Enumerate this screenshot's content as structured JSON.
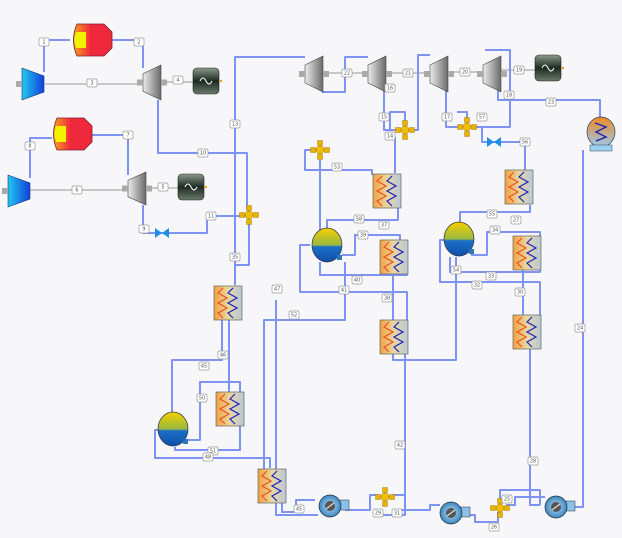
{
  "diagram": {
    "type": "power-plant-process-flow",
    "colors": {
      "pipe": "#7f93f2",
      "combustor": "#f0283c",
      "compressor": "#1a8cf0",
      "valve": "#1e8fe6",
      "splitter": "#e8b400",
      "drum_top": "#f0c800",
      "drum_water": "#1b6fc8"
    },
    "streams": [
      "1",
      "2",
      "3",
      "4",
      "5",
      "6",
      "7",
      "8",
      "9",
      "10",
      "11",
      "13",
      "22",
      "21",
      "20",
      "19",
      "16",
      "15",
      "14",
      "17",
      "57",
      "18",
      "23",
      "56",
      "53",
      "24",
      "35",
      "58",
      "37",
      "39",
      "40",
      "41",
      "38",
      "47",
      "52",
      "55",
      "27",
      "34",
      "33",
      "54",
      "32",
      "30",
      "46",
      "45",
      "50",
      "51",
      "48",
      "42",
      "45",
      "29",
      "31",
      "28",
      "25",
      "26"
    ]
  }
}
